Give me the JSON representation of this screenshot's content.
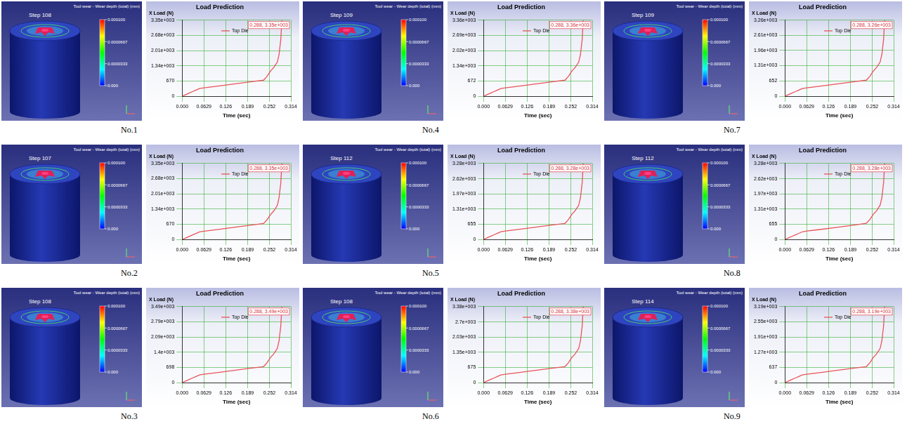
{
  "chart_data": [
    {
      "panel_label": "No.1",
      "render": {
        "step_label": "Step 108",
        "legend_title": "Tool wear - Wear depth (total) (mm)",
        "colorbar": {
          "range": [
            0,
            0.0001
          ],
          "ticks": [
            {
              "value": 0,
              "label": "0.000"
            },
            3.33e-05,
            6.67e-05,
            {
              "value": 0.0001,
              "label": "0.000100"
            }
          ]
        }
      },
      "type": "line",
      "title": "Load Prediction",
      "x_label": "Time (sec)",
      "y_label": "X Load (N)",
      "grid": true,
      "legend": "upper center",
      "annotation": "0.288, 3.35e+003",
      "x": [
        0,
        0.01,
        0.02,
        0.03,
        0.04,
        0.05,
        0.063,
        0.1,
        0.15,
        0.2,
        0.235,
        0.245,
        0.255,
        0.265,
        0.275,
        0.28,
        0.285,
        0.288
      ],
      "series": [
        {
          "name": "Top Die",
          "color": "#e8545a",
          "values": [
            0,
            67,
            134,
            201,
            268,
            335,
            369,
            436,
            536,
            637,
            704,
            871,
            1106,
            1273,
            1508,
            1843,
            2513,
            3350
          ]
        }
      ],
      "xlim": [
        0,
        0.314
      ],
      "xticks": [
        {
          "value": 0,
          "label": "0.000"
        },
        0.0629,
        0.126,
        0.189,
        0.252,
        0.314
      ],
      "ylim": [
        0,
        3350
      ],
      "yticks": [
        0,
        670,
        {
          "value": 1340,
          "label": "1.34e+003"
        },
        {
          "value": 2010,
          "label": "2.01e+003"
        },
        {
          "value": 2680,
          "label": "2.68e+003"
        },
        {
          "value": 3350,
          "label": "3.35e+003"
        }
      ]
    },
    {
      "panel_label": "No.2",
      "render": {
        "step_label": "Step 107",
        "legend_title": "Tool wear - Wear depth (total) (mm)",
        "colorbar": {
          "range": [
            0,
            0.0001
          ],
          "ticks": [
            {
              "value": 0,
              "label": "0.000"
            },
            3.33e-05,
            6.67e-05,
            {
              "value": 0.0001,
              "label": "0.000100"
            }
          ]
        }
      },
      "type": "line",
      "title": "Load Prediction",
      "x_label": "Time (sec)",
      "y_label": "X Load (N)",
      "grid": true,
      "legend": "upper center",
      "annotation": "0.288, 3.35e+003",
      "x": [
        0,
        0.01,
        0.02,
        0.03,
        0.04,
        0.05,
        0.063,
        0.1,
        0.15,
        0.2,
        0.235,
        0.245,
        0.255,
        0.265,
        0.275,
        0.28,
        0.285,
        0.288
      ],
      "series": [
        {
          "name": "Top Die",
          "color": "#e8545a",
          "values": [
            0,
            60,
            130,
            200,
            260,
            330,
            360,
            430,
            530,
            630,
            700,
            860,
            1090,
            1260,
            1500,
            1850,
            2500,
            3350
          ]
        }
      ],
      "xlim": [
        0,
        0.314
      ],
      "xticks": [
        {
          "value": 0,
          "label": "0.000"
        },
        0.0629,
        0.126,
        0.189,
        0.252,
        0.314
      ],
      "ylim": [
        0,
        3350
      ],
      "yticks": [
        0,
        670,
        {
          "value": 1340,
          "label": "1.34e+003"
        },
        {
          "value": 2010,
          "label": "2.01e+003"
        },
        {
          "value": 2680,
          "label": "2.68e+003"
        },
        {
          "value": 3350,
          "label": "3.35e+003"
        }
      ]
    },
    {
      "panel_label": "No.3",
      "render": {
        "step_label": "Step 108",
        "legend_title": "Tool wear - Wear depth (total) (mm)",
        "colorbar": {
          "range": [
            0,
            0.0001
          ],
          "ticks": [
            {
              "value": 0,
              "label": "0.000"
            },
            3.33e-05,
            6.67e-05,
            {
              "value": 0.0001,
              "label": "0.000100"
            }
          ]
        }
      },
      "type": "line",
      "title": "Load Prediction",
      "x_label": "Time (sec)",
      "y_label": "X Load (N)",
      "grid": true,
      "legend": "upper center",
      "annotation": "0.288, 3.49e+003",
      "x": [
        0,
        0.01,
        0.02,
        0.03,
        0.04,
        0.05,
        0.063,
        0.1,
        0.15,
        0.2,
        0.235,
        0.245,
        0.255,
        0.265,
        0.275,
        0.28,
        0.285,
        0.288
      ],
      "series": [
        {
          "name": "Top Die",
          "color": "#e8545a",
          "values": [
            0,
            70,
            140,
            209,
            279,
            349,
            384,
            454,
            558,
            663,
            733,
            907,
            1152,
            1326,
            1571,
            1920,
            2618,
            3490
          ]
        }
      ],
      "xlim": [
        0,
        0.314
      ],
      "xticks": [
        {
          "value": 0,
          "label": "0.000"
        },
        0.0629,
        0.126,
        0.189,
        0.252,
        0.314
      ],
      "ylim": [
        0,
        3490
      ],
      "yticks": [
        0,
        698,
        {
          "value": 1400,
          "label": "1.4e+003"
        },
        {
          "value": 2090,
          "label": "2.09e+003"
        },
        {
          "value": 2790,
          "label": "2.79e+003"
        },
        {
          "value": 3490,
          "label": "3.49e+003"
        }
      ]
    },
    {
      "panel_label": "No.4",
      "render": {
        "step_label": "Step 109",
        "legend_title": "Tool wear - Wear depth (total) (mm)",
        "colorbar": {
          "range": [
            0,
            0.0001
          ],
          "ticks": [
            {
              "value": 0,
              "label": "0.000"
            },
            3.33e-05,
            6.67e-05,
            {
              "value": 0.0001,
              "label": "0.000100"
            }
          ]
        }
      },
      "type": "line",
      "title": "Load Prediction",
      "x_label": "Time (sec)",
      "y_label": "X Load (N)",
      "grid": true,
      "legend": "upper center",
      "annotation": "0.288, 3.36e+003",
      "x": [
        0,
        0.01,
        0.02,
        0.03,
        0.04,
        0.05,
        0.063,
        0.1,
        0.15,
        0.2,
        0.235,
        0.245,
        0.255,
        0.265,
        0.275,
        0.28,
        0.285,
        0.288
      ],
      "series": [
        {
          "name": "Top Die",
          "color": "#e8545a",
          "values": [
            0,
            67,
            134,
            202,
            269,
            336,
            370,
            437,
            538,
            638,
            706,
            874,
            1109,
            1277,
            1512,
            1848,
            2520,
            3360
          ]
        }
      ],
      "xlim": [
        0,
        0.314
      ],
      "xticks": [
        {
          "value": 0,
          "label": "0.000"
        },
        0.0629,
        0.126,
        0.189,
        0.252,
        0.314
      ],
      "ylim": [
        0,
        3360
      ],
      "yticks": [
        0,
        672,
        {
          "value": 1344,
          "label": "1.34e+003"
        },
        {
          "value": 2016,
          "label": "2.02e+003"
        },
        {
          "value": 2688,
          "label": "2.69e+003"
        },
        {
          "value": 3360,
          "label": "3.36e+003"
        }
      ]
    },
    {
      "panel_label": "No.5",
      "render": {
        "step_label": "Step 112",
        "legend_title": "Tool wear - Wear depth (total) (mm)",
        "colorbar": {
          "range": [
            0,
            0.0001
          ],
          "ticks": [
            {
              "value": 0,
              "label": "0.000"
            },
            3.33e-05,
            6.67e-05,
            {
              "value": 0.0001,
              "label": "0.000100"
            }
          ]
        }
      },
      "type": "line",
      "title": "Load Prediction",
      "x_label": "Time (sec)",
      "y_label": "X Load (N)",
      "grid": true,
      "legend": "upper center",
      "annotation": "0.288, 3.28e+003",
      "x": [
        0,
        0.01,
        0.02,
        0.03,
        0.04,
        0.05,
        0.063,
        0.1,
        0.15,
        0.2,
        0.235,
        0.245,
        0.255,
        0.265,
        0.275,
        0.28,
        0.285,
        0.288
      ],
      "series": [
        {
          "name": "Top Die",
          "color": "#e8545a",
          "values": [
            0,
            66,
            131,
            197,
            262,
            328,
            361,
            426,
            525,
            623,
            689,
            853,
            1082,
            1246,
            1476,
            1804,
            2460,
            3280
          ]
        }
      ],
      "xlim": [
        0,
        0.314
      ],
      "xticks": [
        {
          "value": 0,
          "label": "0.000"
        },
        0.0629,
        0.126,
        0.189,
        0.252,
        0.314
      ],
      "ylim": [
        0,
        3280
      ],
      "yticks": [
        0,
        655,
        {
          "value": 1310,
          "label": "1.31e+003"
        },
        {
          "value": 1970,
          "label": "1.97e+003"
        },
        {
          "value": 2620,
          "label": "2.62e+003"
        },
        {
          "value": 3280,
          "label": "3.28e+003"
        }
      ]
    },
    {
      "panel_label": "No.6",
      "render": {
        "step_label": "Step 108",
        "legend_title": "Tool wear - Wear depth (total) (mm)",
        "colorbar": {
          "range": [
            0,
            0.0001
          ],
          "ticks": [
            {
              "value": 0,
              "label": "0.000"
            },
            3.33e-05,
            6.67e-05,
            {
              "value": 0.0001,
              "label": "0.000100"
            }
          ]
        }
      },
      "type": "line",
      "title": "Load Prediction",
      "x_label": "Time (sec)",
      "y_label": "X Load (N)",
      "grid": true,
      "legend": "upper center",
      "annotation": "0.288, 3.38e+003",
      "x": [
        0,
        0.01,
        0.02,
        0.03,
        0.04,
        0.05,
        0.063,
        0.1,
        0.15,
        0.2,
        0.235,
        0.245,
        0.255,
        0.265,
        0.275,
        0.28,
        0.285,
        0.288
      ],
      "series": [
        {
          "name": "Top Die",
          "color": "#e8545a",
          "values": [
            0,
            68,
            135,
            203,
            270,
            338,
            372,
            439,
            541,
            642,
            710,
            879,
            1115,
            1284,
            1521,
            1859,
            2535,
            3380
          ]
        }
      ],
      "xlim": [
        0,
        0.314
      ],
      "xticks": [
        {
          "value": 0,
          "label": "0.000"
        },
        0.0629,
        0.126,
        0.189,
        0.252,
        0.314
      ],
      "ylim": [
        0,
        3380
      ],
      "yticks": [
        0,
        675,
        {
          "value": 1350,
          "label": "1.35e+003"
        },
        {
          "value": 2030,
          "label": "2.03e+003"
        },
        {
          "value": 2700,
          "label": "2.7e+003"
        },
        {
          "value": 3380,
          "label": "3.38e+003"
        }
      ]
    },
    {
      "panel_label": "No.7",
      "render": {
        "step_label": "Step 109",
        "legend_title": "Tool wear - Wear depth (total) (mm)",
        "colorbar": {
          "range": [
            0,
            0.0001
          ],
          "ticks": [
            {
              "value": 0,
              "label": "0.000"
            },
            3.33e-05,
            6.67e-05,
            {
              "value": 0.0001,
              "label": "0.000100"
            }
          ]
        }
      },
      "type": "line",
      "title": "Load Prediction",
      "x_label": "Time (sec)",
      "y_label": "X Load (N)",
      "grid": true,
      "legend": "upper center",
      "annotation": "0.288, 3.26e+003",
      "x": [
        0,
        0.01,
        0.02,
        0.03,
        0.04,
        0.05,
        0.063,
        0.1,
        0.15,
        0.2,
        0.235,
        0.245,
        0.255,
        0.265,
        0.275,
        0.28,
        0.285,
        0.288
      ],
      "series": [
        {
          "name": "Top Die",
          "color": "#e8545a",
          "values": [
            0,
            65,
            130,
            196,
            261,
            326,
            359,
            424,
            522,
            619,
            685,
            848,
            1076,
            1239,
            1467,
            1793,
            2445,
            3260
          ]
        }
      ],
      "xlim": [
        0,
        0.314
      ],
      "xticks": [
        {
          "value": 0,
          "label": "0.000"
        },
        0.0629,
        0.126,
        0.189,
        0.252,
        0.314
      ],
      "ylim": [
        0,
        3260
      ],
      "yticks": [
        0,
        652,
        {
          "value": 1310,
          "label": "1.31e+003"
        },
        {
          "value": 1960,
          "label": "1.96e+003"
        },
        {
          "value": 2610,
          "label": "2.61e+003"
        },
        {
          "value": 3260,
          "label": "3.26e+003"
        }
      ]
    },
    {
      "panel_label": "No.8",
      "render": {
        "step_label": "Step 112",
        "legend_title": "Tool wear - Wear depth (total) (mm)",
        "colorbar": {
          "range": [
            0,
            0.0001
          ],
          "ticks": [
            {
              "value": 0,
              "label": "0.000"
            },
            3.33e-05,
            6.67e-05,
            {
              "value": 0.0001,
              "label": "0.000100"
            }
          ]
        }
      },
      "type": "line",
      "title": "Load Prediction",
      "x_label": "Time (sec)",
      "y_label": "X Load (N)",
      "grid": true,
      "legend": "upper center",
      "annotation": "0.288, 3.28e+003",
      "x": [
        0,
        0.01,
        0.02,
        0.03,
        0.04,
        0.05,
        0.063,
        0.1,
        0.15,
        0.2,
        0.235,
        0.245,
        0.255,
        0.265,
        0.275,
        0.28,
        0.285,
        0.288
      ],
      "series": [
        {
          "name": "Top Die",
          "color": "#e8545a",
          "values": [
            0,
            62,
            128,
            195,
            258,
            325,
            358,
            425,
            522,
            620,
            690,
            850,
            1080,
            1240,
            1480,
            1800,
            2450,
            3280
          ]
        }
      ],
      "xlim": [
        0,
        0.314
      ],
      "xticks": [
        {
          "value": 0,
          "label": "0.000"
        },
        0.0629,
        0.126,
        0.189,
        0.252,
        0.314
      ],
      "ylim": [
        0,
        3280
      ],
      "yticks": [
        0,
        655,
        {
          "value": 1310,
          "label": "1.31e+003"
        },
        {
          "value": 1970,
          "label": "1.97e+003"
        },
        {
          "value": 2620,
          "label": "2.62e+003"
        },
        {
          "value": 3280,
          "label": "3.28e+003"
        }
      ]
    },
    {
      "panel_label": "No.9",
      "render": {
        "step_label": "Step 114",
        "legend_title": "Tool wear - Wear depth (total) (mm)",
        "colorbar": {
          "range": [
            0,
            0.0001
          ],
          "ticks": [
            {
              "value": 0,
              "label": "0.000"
            },
            3.33e-05,
            6.67e-05,
            {
              "value": 0.0001,
              "label": "0.000100"
            }
          ]
        }
      },
      "type": "line",
      "title": "Load Prediction",
      "x_label": "Time (sec)",
      "y_label": "X Load (N)",
      "grid": true,
      "legend": "upper center",
      "annotation": "0.288, 3.19e+003",
      "x": [
        0,
        0.01,
        0.02,
        0.03,
        0.04,
        0.05,
        0.063,
        0.1,
        0.15,
        0.2,
        0.235,
        0.245,
        0.255,
        0.265,
        0.275,
        0.28,
        0.285,
        0.288
      ],
      "series": [
        {
          "name": "Top Die",
          "color": "#e8545a",
          "values": [
            0,
            64,
            128,
            191,
            255,
            319,
            351,
            415,
            510,
            606,
            670,
            829,
            1053,
            1212,
            1436,
            1755,
            2393,
            3190
          ]
        }
      ],
      "xlim": [
        0,
        0.314
      ],
      "xticks": [
        {
          "value": 0,
          "label": "0.000"
        },
        0.0629,
        0.126,
        0.189,
        0.252,
        0.314
      ],
      "ylim": [
        0,
        3190
      ],
      "yticks": [
        0,
        637,
        {
          "value": 1270,
          "label": "1.27e+003"
        },
        {
          "value": 1910,
          "label": "1.91e+003"
        },
        {
          "value": 2550,
          "label": "2.55e+003"
        },
        {
          "value": 3190,
          "label": "3.19e+003"
        }
      ]
    }
  ]
}
